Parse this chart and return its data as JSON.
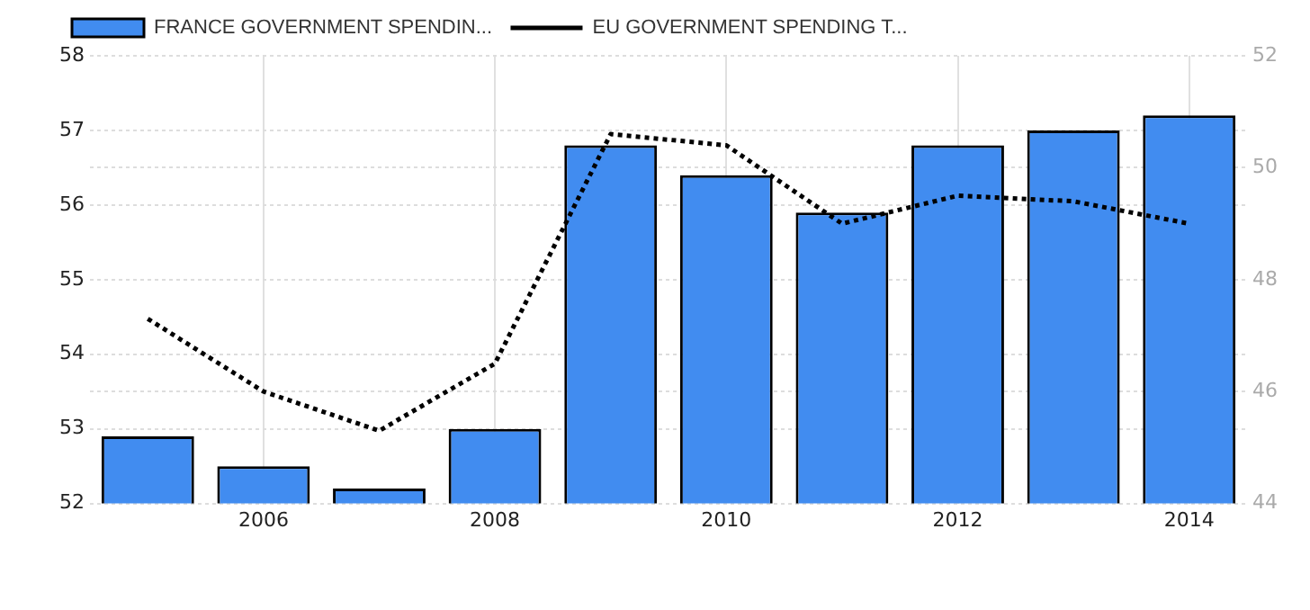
{
  "chart_data": {
    "type": "bar",
    "categories": [
      null,
      "2006",
      null,
      "2008",
      null,
      "2010",
      null,
      "2012",
      null,
      "2014"
    ],
    "series": [
      {
        "name": "FRANCE GOVERNMENT SPENDIN...",
        "color": "#418cf0",
        "values": [
          52.9,
          52.5,
          52.2,
          53.0,
          56.8,
          56.4,
          55.9,
          56.8,
          57.0,
          57.2
        ]
      },
      {
        "name": "EU GOVERNMENT SPENDING T...",
        "type": "line",
        "axis": "y2",
        "color": "#000000",
        "line_style": "dotted",
        "marker": "none",
        "values": [
          47.3,
          46.0,
          45.3,
          46.5,
          50.6,
          50.4,
          49.0,
          49.5,
          49.4,
          49.0
        ]
      }
    ],
    "ylim": [
      52,
      58
    ],
    "yticks": [
      52,
      53,
      54,
      55,
      56,
      57,
      58
    ],
    "y2lim": [
      44,
      52
    ],
    "y2ticks": [
      44,
      46,
      48,
      50,
      52
    ],
    "grid": true,
    "legend": "top left"
  }
}
